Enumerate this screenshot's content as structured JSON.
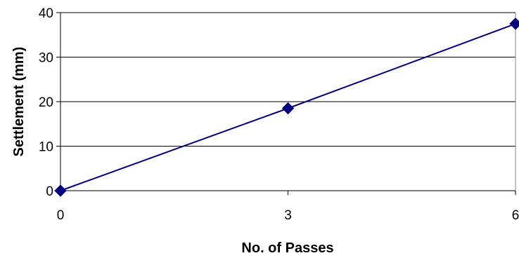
{
  "chart_data": {
    "type": "line",
    "title": "",
    "xlabel": "No. of Passes",
    "ylabel": "Settlement (mm)",
    "x": [
      0,
      3,
      6
    ],
    "y": [
      0,
      18.5,
      37.5
    ],
    "xlim": [
      0,
      6
    ],
    "ylim": [
      0,
      40
    ],
    "xticks": [
      0,
      3,
      6
    ],
    "yticks": [
      0,
      10,
      20,
      30,
      40
    ],
    "grid": "horizontal",
    "marker": "diamond",
    "legend": "none",
    "colors": {
      "series": "#000080",
      "grid": "#000000",
      "background": "#ffffff"
    }
  }
}
